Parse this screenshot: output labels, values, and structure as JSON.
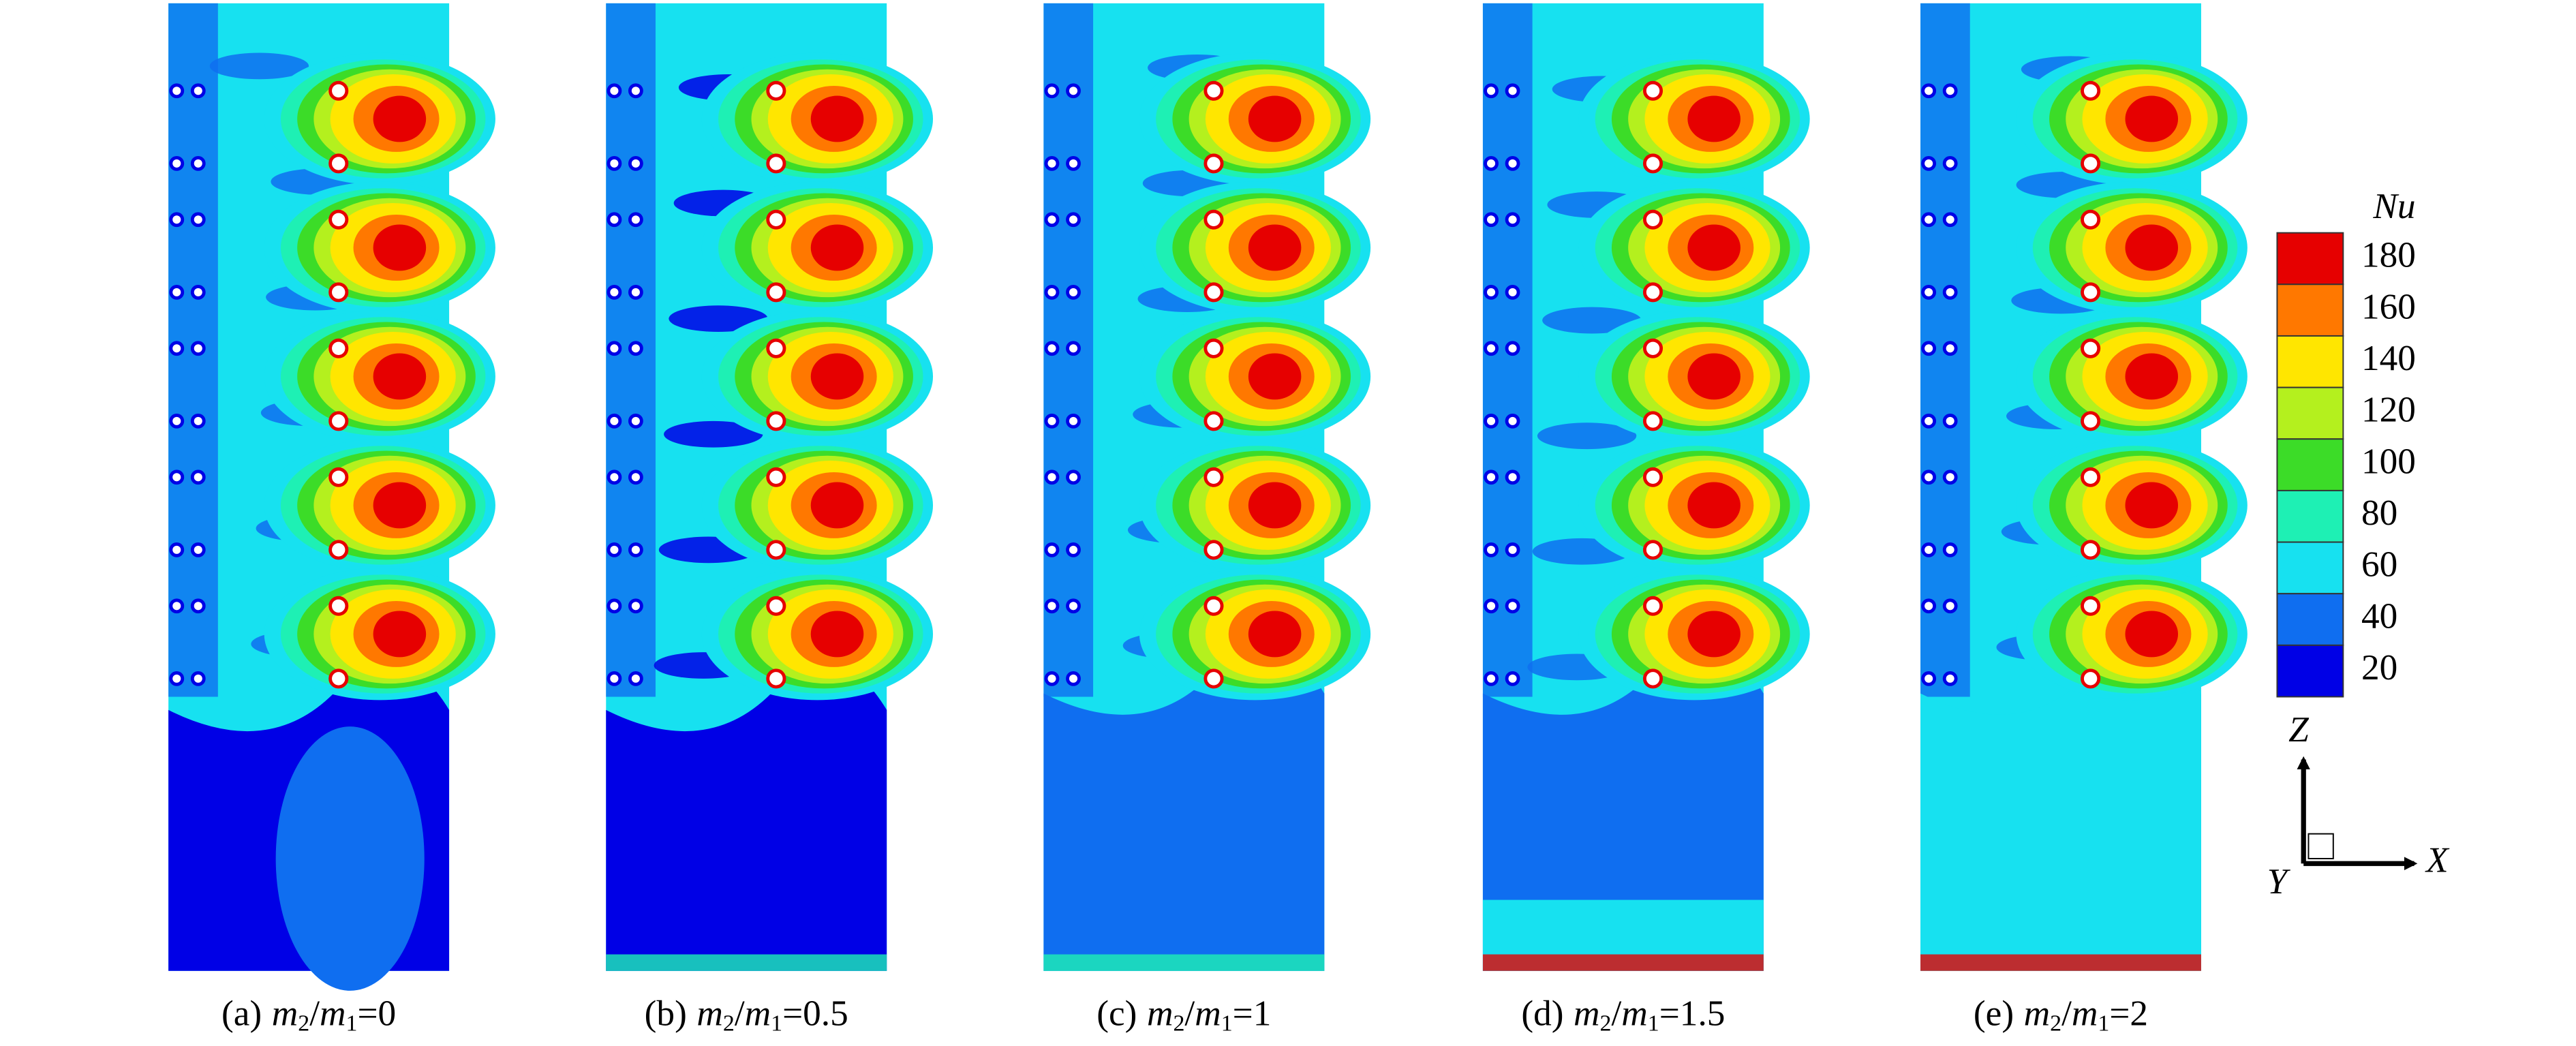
{
  "panels": [
    {
      "letter": "(a)",
      "value": "0"
    },
    {
      "letter": "(b)",
      "value": "0.5"
    },
    {
      "letter": "(c)",
      "value": "1"
    },
    {
      "letter": "(d)",
      "value": "1.5"
    },
    {
      "letter": "(e)",
      "value": "2"
    }
  ],
  "caption_parts": {
    "m": "m",
    "sub2": "2",
    "slash": "/",
    "sub1": "1",
    "equals": "="
  },
  "colorbar": {
    "title": "Nu",
    "ticks": [
      180,
      160,
      140,
      120,
      100,
      80,
      60,
      40,
      20
    ]
  },
  "axes": {
    "z": "Z",
    "x": "X",
    "y": "Y"
  }
}
